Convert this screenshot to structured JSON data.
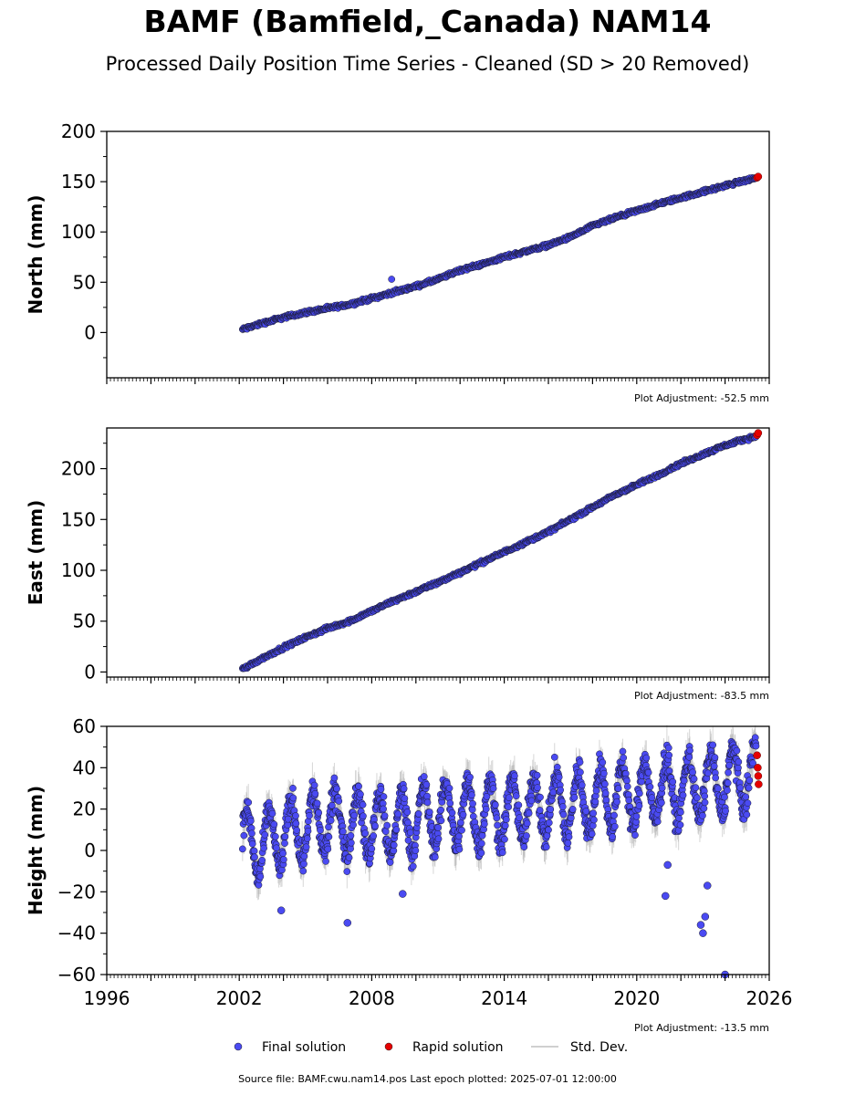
{
  "title": "BAMF (Bamfield,_Canada) NAM14",
  "subtitle": "Processed Daily Position Time Series - Cleaned (SD > 20 Removed)",
  "source_text": "Source file: BAMF.cwu.nam14.pos  Last epoch plotted: 2025-07-01 12:00:00",
  "colors": {
    "final": "#4a4af2",
    "rapid": "#e60000",
    "stddev": "#b4b4b4",
    "edge": "#1a1a2e"
  },
  "legend": [
    {
      "label": "Final solution",
      "color": "#4a4af2",
      "kind": "dot"
    },
    {
      "label": "Rapid solution",
      "color": "#e60000",
      "kind": "dot"
    },
    {
      "label": "Std. Dev.",
      "color": "#b4b4b4",
      "kind": "line"
    }
  ],
  "chart_data": [
    {
      "type": "scatter",
      "ylabel": "North (mm)",
      "xlim": [
        1996,
        2026
      ],
      "ylim": [
        -45,
        200
      ],
      "yticks": [
        0,
        50,
        100,
        150,
        200
      ],
      "adjustment": "Plot Adjustment: -52.5 mm",
      "series": [
        {
          "name": "Final solution",
          "x": [
            2002.0,
            2003.0,
            2004.0,
            2005.0,
            2006.0,
            2007.0,
            2008.0,
            2009.0,
            2010.0,
            2011.0,
            2012.0,
            2013.0,
            2014.0,
            2015.0,
            2016.0,
            2017.0,
            2018.0,
            2019.0,
            2020.0,
            2021.0,
            2022.0,
            2023.0,
            2024.0,
            2025.4
          ],
          "y": [
            2,
            9,
            15,
            20,
            24,
            28,
            34,
            40,
            46,
            53,
            62,
            68,
            75,
            81,
            87,
            95,
            106,
            114,
            121,
            128,
            134,
            140,
            146,
            154
          ],
          "std": 3
        },
        {
          "name": "Rapid solution",
          "x": [
            2025.45,
            2025.5
          ],
          "y": [
            154,
            155
          ]
        }
      ]
    },
    {
      "type": "scatter",
      "ylabel": "East (mm)",
      "xlim": [
        1996,
        2026
      ],
      "ylim": [
        -5,
        240
      ],
      "yticks": [
        0,
        50,
        100,
        150,
        200
      ],
      "adjustment": "Plot Adjustment: -83.5 mm",
      "series": [
        {
          "name": "Final solution",
          "x": [
            2002.0,
            2003.0,
            2004.0,
            2005.0,
            2006.0,
            2007.0,
            2008.0,
            2009.0,
            2010.0,
            2011.0,
            2012.0,
            2013.0,
            2014.0,
            2015.0,
            2016.0,
            2017.0,
            2018.0,
            2019.0,
            2020.0,
            2021.0,
            2022.0,
            2023.0,
            2024.0,
            2025.4
          ],
          "y": [
            1,
            13,
            24,
            34,
            43,
            50,
            60,
            70,
            79,
            88,
            98,
            108,
            118,
            128,
            138,
            150,
            162,
            174,
            184,
            194,
            205,
            214,
            223,
            232
          ],
          "std": 3
        },
        {
          "name": "Rapid solution",
          "x": [
            2025.45,
            2025.5
          ],
          "y": [
            233,
            235
          ]
        }
      ]
    },
    {
      "type": "scatter",
      "ylabel": "Height (mm)",
      "xlim": [
        1996,
        2026
      ],
      "ylim": [
        -60,
        60
      ],
      "yticks": [
        -60,
        -40,
        -20,
        0,
        20,
        40,
        60
      ],
      "xticks": [
        1996,
        2002,
        2008,
        2014,
        2020,
        2026
      ],
      "adjustment": "Plot Adjustment: -13.5 mm",
      "series": [
        {
          "name": "Final solution",
          "x": [
            2002.0,
            2003.0,
            2004.0,
            2005.0,
            2006.0,
            2007.0,
            2008.0,
            2009.0,
            2010.0,
            2011.0,
            2012.0,
            2013.0,
            2014.0,
            2015.0,
            2016.0,
            2017.0,
            2018.0,
            2019.0,
            2020.0,
            2021.0,
            2022.0,
            2023.0,
            2024.0,
            2025.4
          ],
          "y": [
            5,
            2,
            8,
            12,
            14,
            13,
            13,
            12,
            15,
            17,
            18,
            18,
            19,
            20,
            22,
            22,
            24,
            26,
            27,
            29,
            30,
            31,
            34,
            36
          ],
          "amplitude": 15,
          "scatter": 6,
          "std": 7
        },
        {
          "name": "Final solution outliers",
          "x": [
            2003.9,
            2006.9,
            2009.4,
            2021.3,
            2021.4,
            2022.9,
            2023.0,
            2023.1,
            2023.2,
            2024.0
          ],
          "y": [
            -29,
            -35,
            -21,
            -22,
            -7,
            -36,
            -40,
            -32,
            -17,
            -60
          ]
        },
        {
          "name": "Rapid solution",
          "x": [
            2025.45,
            2025.48,
            2025.5,
            2025.52
          ],
          "y": [
            46,
            40,
            36,
            32
          ]
        }
      ]
    }
  ]
}
